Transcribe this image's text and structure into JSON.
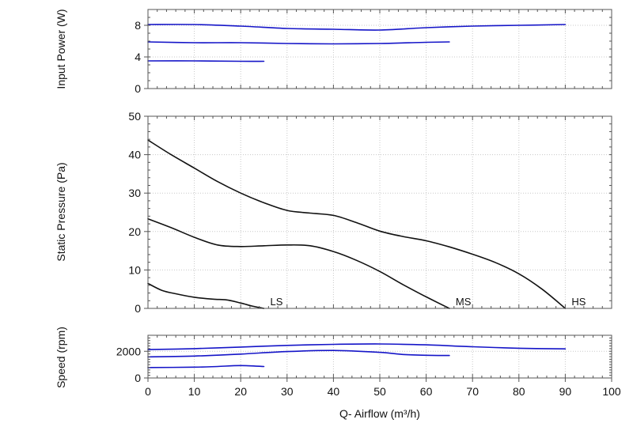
{
  "chart_data": [
    {
      "id": "power",
      "type": "line",
      "ylabel": "Input Power (W)",
      "xlim": [
        0,
        100
      ],
      "ylim": [
        0,
        10
      ],
      "yticks": [
        0,
        4,
        8
      ],
      "grid": true,
      "color": "#1515c8",
      "series": [
        {
          "name": "HS",
          "x": [
            0,
            10,
            20,
            30,
            40,
            50,
            60,
            70,
            80,
            90
          ],
          "y": [
            8.1,
            8.1,
            7.9,
            7.6,
            7.5,
            7.4,
            7.7,
            7.9,
            8.0,
            8.1
          ]
        },
        {
          "name": "MS",
          "x": [
            0,
            10,
            20,
            30,
            40,
            50,
            60,
            65
          ],
          "y": [
            5.9,
            5.8,
            5.8,
            5.7,
            5.65,
            5.7,
            5.85,
            5.9
          ]
        },
        {
          "name": "LS",
          "x": [
            0,
            10,
            20,
            25
          ],
          "y": [
            3.5,
            3.5,
            3.45,
            3.45
          ]
        }
      ]
    },
    {
      "id": "pressure",
      "type": "line",
      "ylabel": "Static Pressure (Pa)",
      "xlim": [
        0,
        100
      ],
      "ylim": [
        0,
        50
      ],
      "yticks": [
        0,
        10,
        20,
        30,
        40,
        50
      ],
      "grid": true,
      "color": "#111111",
      "series": [
        {
          "name": "HS",
          "label": "HS",
          "x": [
            0,
            5,
            10,
            15,
            20,
            25,
            30,
            35,
            40,
            45,
            50,
            55,
            60,
            65,
            70,
            75,
            80,
            85,
            90
          ],
          "y": [
            43.8,
            40,
            36.5,
            33,
            30,
            27.5,
            25.5,
            24.8,
            24.2,
            22.3,
            20.1,
            18.7,
            17.6,
            16,
            14.1,
            11.9,
            9,
            5,
            0
          ]
        },
        {
          "name": "MS",
          "label": "MS",
          "x": [
            0,
            5,
            10,
            15,
            20,
            25,
            30,
            35,
            40,
            45,
            50,
            55,
            60,
            65
          ],
          "y": [
            23.3,
            21,
            18.5,
            16.5,
            16.1,
            16.3,
            16.5,
            16.3,
            14.8,
            12.5,
            9.6,
            6.2,
            3,
            0
          ]
        },
        {
          "name": "LS",
          "label": "LS",
          "x": [
            0,
            3,
            6,
            10,
            14,
            17,
            20,
            22.5,
            25
          ],
          "y": [
            6.5,
            4.7,
            3.8,
            2.9,
            2.4,
            2.2,
            1.4,
            0.6,
            0
          ]
        }
      ]
    },
    {
      "id": "speed",
      "type": "line",
      "ylabel": "Speed (rpm)",
      "xlabel": "Q- Airflow (m³/h)",
      "xlim": [
        0,
        100
      ],
      "ylim": [
        0,
        3200
      ],
      "yticks": [
        0,
        2000
      ],
      "xticks": [
        0,
        10,
        20,
        30,
        40,
        50,
        60,
        70,
        80,
        90,
        100
      ],
      "grid": true,
      "color": "#1515c8",
      "series": [
        {
          "name": "HS",
          "x": [
            0,
            10,
            20,
            30,
            40,
            50,
            60,
            70,
            80,
            90
          ],
          "y": [
            2130,
            2200,
            2320,
            2440,
            2520,
            2550,
            2480,
            2340,
            2230,
            2180
          ]
        },
        {
          "name": "MS",
          "x": [
            0,
            10,
            20,
            30,
            40,
            50,
            55,
            60,
            65
          ],
          "y": [
            1580,
            1640,
            1790,
            1980,
            2060,
            1920,
            1760,
            1700,
            1680
          ]
        },
        {
          "name": "LS",
          "x": [
            0,
            10,
            15,
            20,
            25
          ],
          "y": [
            780,
            810,
            860,
            930,
            860
          ]
        }
      ]
    }
  ]
}
